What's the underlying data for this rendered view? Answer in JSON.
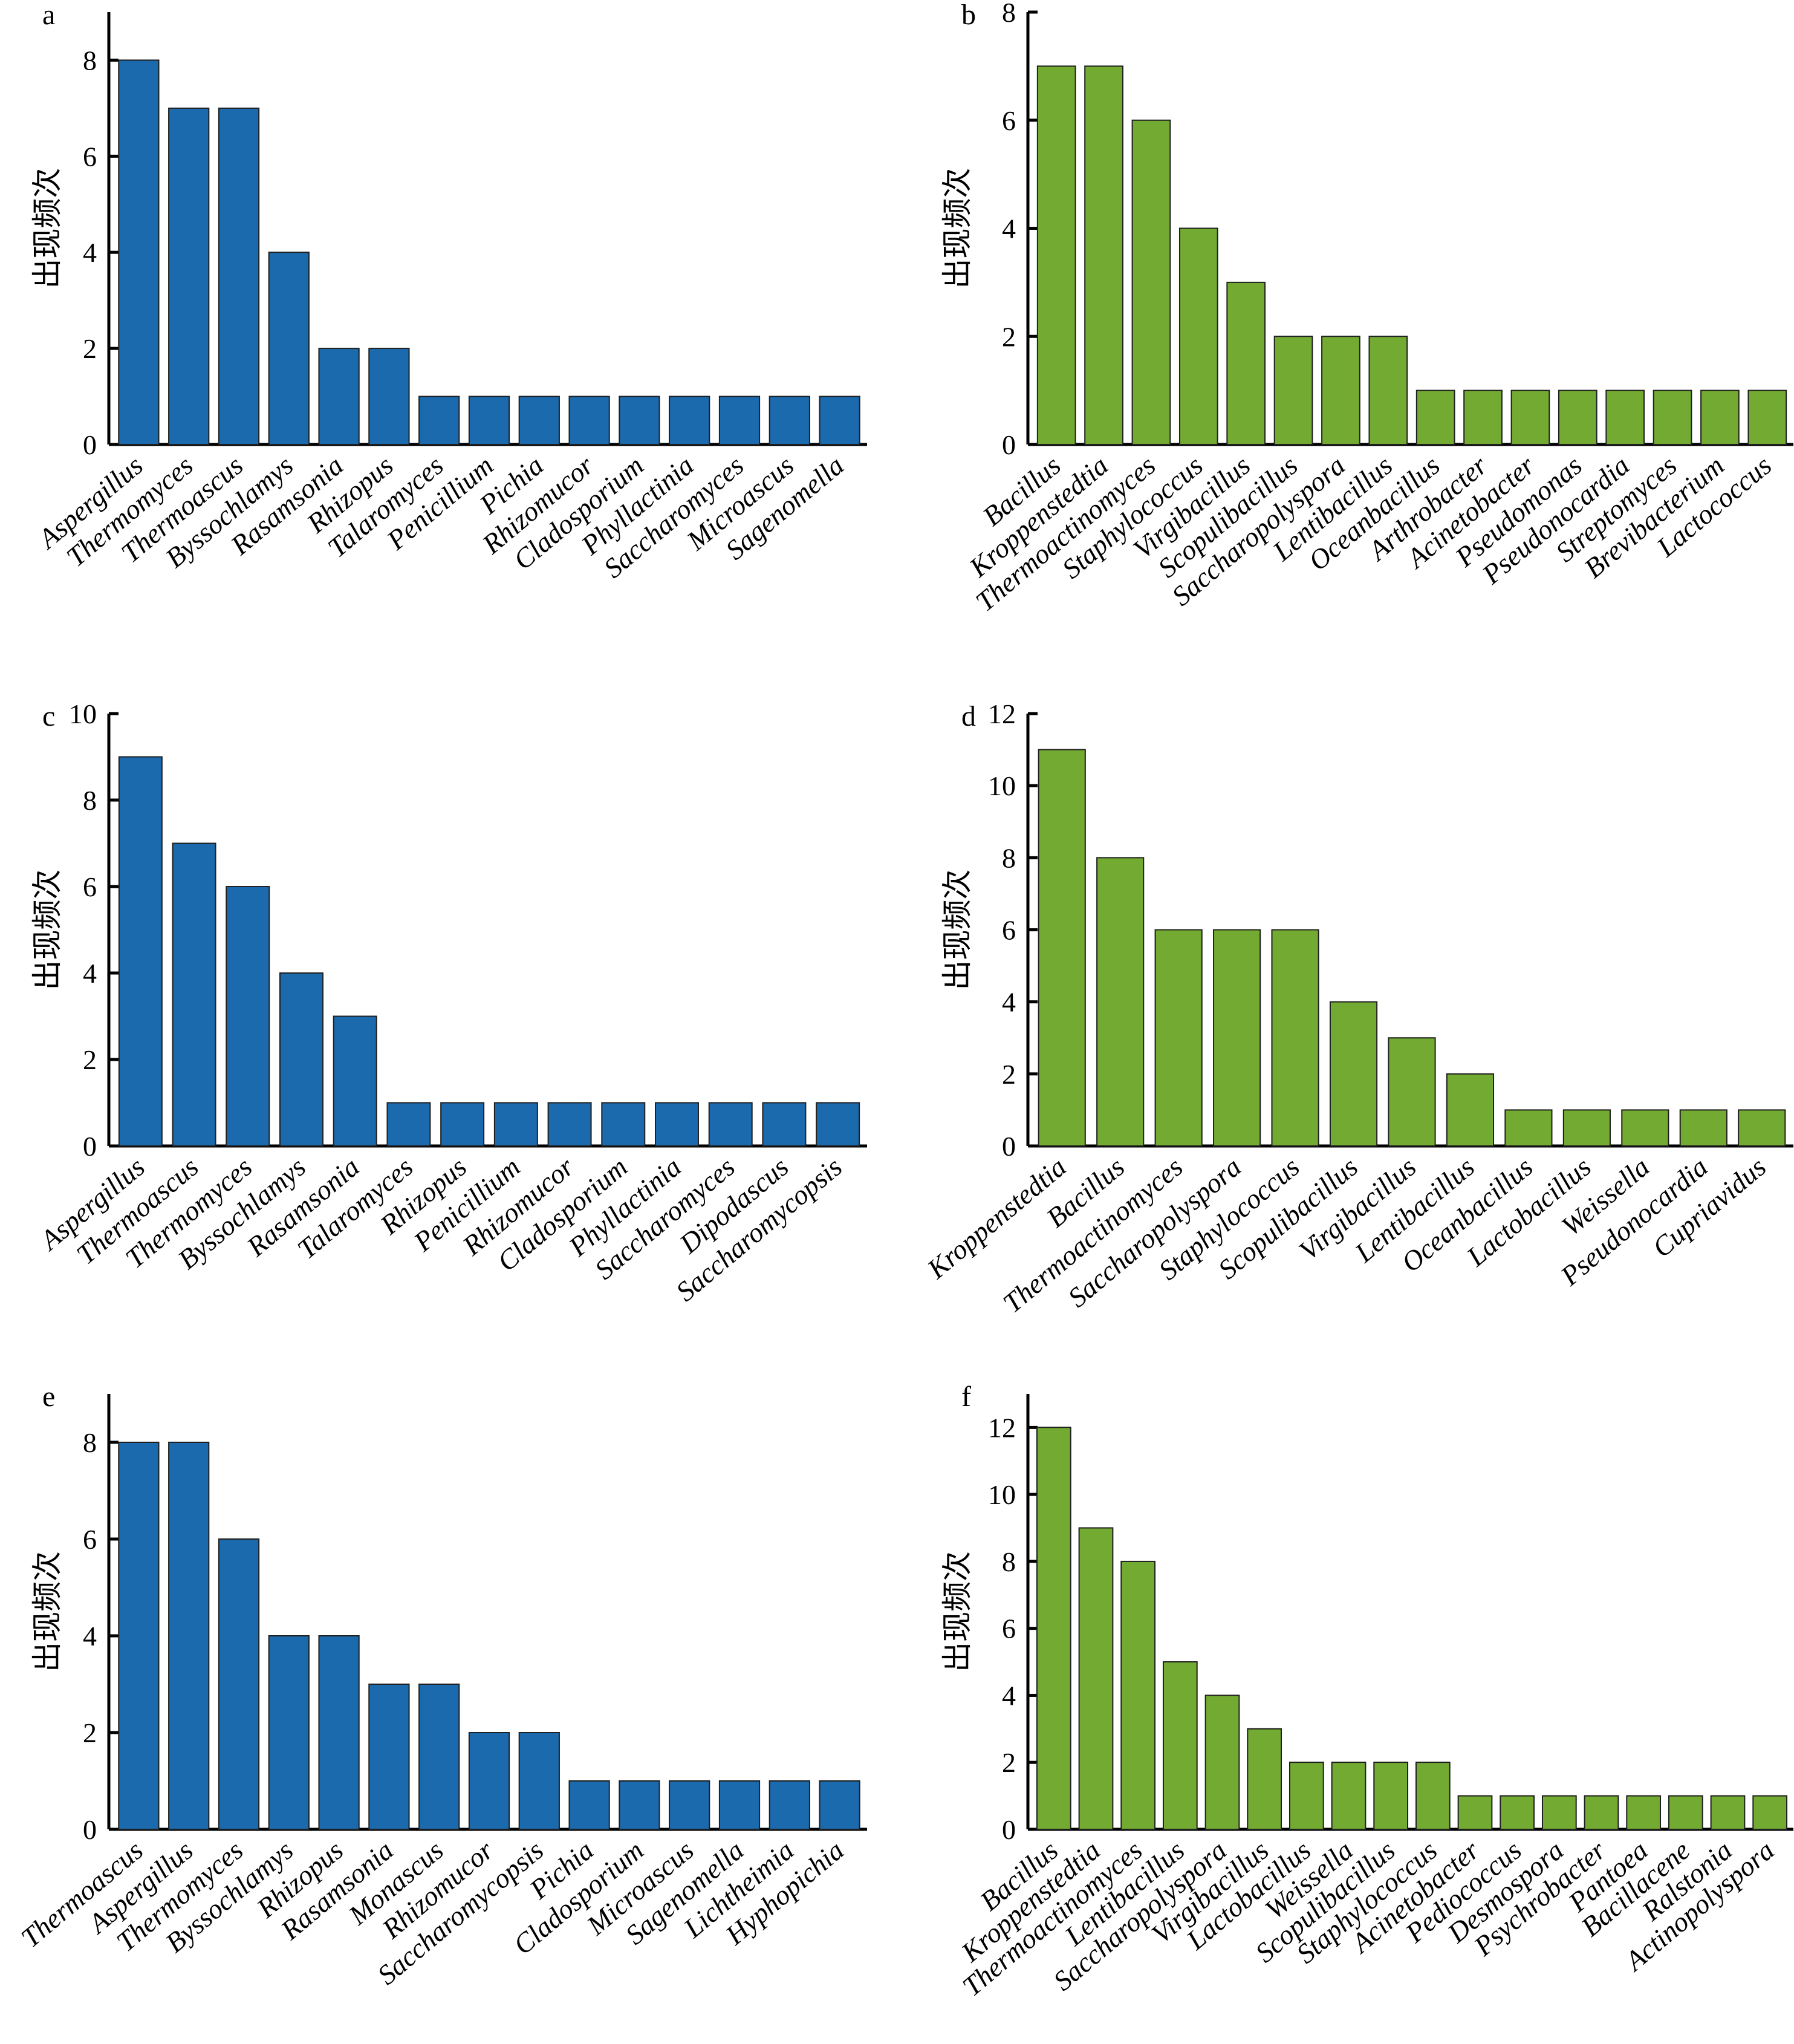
{
  "colors": {
    "fungi": "#1b6aad",
    "bacteria": "#73ab32"
  },
  "chart_data": [
    {
      "type": "bar",
      "panel": "a",
      "ylabel": "出现频次",
      "ylim": [
        0,
        9
      ],
      "yticks": [
        0,
        2,
        4,
        6,
        8
      ],
      "color": "#1b6aad",
      "categories": [
        "Aspergillus",
        "Thermomyces",
        "Thermoascus",
        "Byssochlamys",
        "Rasamsonia",
        "Rhizopus",
        "Talaromyces",
        "Penicillium",
        "Pichia",
        "Rhizomucor",
        "Cladosporium",
        "Phyllactinia",
        "Saccharomyces",
        "Microascus",
        "Sagenomella"
      ],
      "values": [
        8,
        7,
        7,
        4,
        2,
        2,
        1,
        1,
        1,
        1,
        1,
        1,
        1,
        1,
        1
      ]
    },
    {
      "type": "bar",
      "panel": "b",
      "ylabel": "出现频次",
      "ylim": [
        0,
        8
      ],
      "yticks": [
        0,
        2,
        4,
        6,
        8
      ],
      "color": "#73ab32",
      "categories": [
        "Bacillus",
        "Kroppenstedtia",
        "Thermoactinomyces",
        "Staphylococcus",
        "Virgibacillus",
        "Scopulibacillus",
        "Saccharopolyspora",
        "Lentibacillus",
        "Oceanbacillus",
        "Arthrobacter",
        "Acinetobacter",
        "Pseudomonas",
        "Pseudonocardia",
        "Streptomyces",
        "Brevibacterium",
        "Lactococcus"
      ],
      "values": [
        7,
        7,
        6,
        4,
        3,
        2,
        2,
        2,
        1,
        1,
        1,
        1,
        1,
        1,
        1,
        1
      ]
    },
    {
      "type": "bar",
      "panel": "c",
      "ylabel": "出现频次",
      "ylim": [
        0,
        10
      ],
      "yticks": [
        0,
        2,
        4,
        6,
        8,
        10
      ],
      "color": "#1b6aad",
      "categories": [
        "Aspergillus",
        "Thermoascus",
        "Thermomyces",
        "Byssochlamys",
        "Rasamsonia",
        "Talaromyces",
        "Rhizopus",
        "Penicillium",
        "Rhizomucor",
        "Cladosporium",
        "Phyllactinia",
        "Saccharomyces",
        "Dipodascus",
        "Saccharomycopsis"
      ],
      "values": [
        9,
        7,
        6,
        4,
        3,
        1,
        1,
        1,
        1,
        1,
        1,
        1,
        1,
        1
      ]
    },
    {
      "type": "bar",
      "panel": "d",
      "ylabel": "出现频次",
      "ylim": [
        0,
        12
      ],
      "yticks": [
        0,
        2,
        4,
        6,
        8,
        10,
        12
      ],
      "color": "#73ab32",
      "categories": [
        "Kroppenstedtia",
        "Bacillus",
        "Thermoactinomyces",
        "Saccharopolyspora",
        "Staphylococcus",
        "Scopulibacillus",
        "Virgibacillus",
        "Lentibacillus",
        "Oceanbacillus",
        "Lactobacillus",
        "Weissella",
        "Pseudonocardia",
        "Cupriavidus"
      ],
      "values": [
        11,
        8,
        6,
        6,
        6,
        4,
        3,
        2,
        1,
        1,
        1,
        1,
        1
      ]
    },
    {
      "type": "bar",
      "panel": "e",
      "ylabel": "出现频次",
      "ylim": [
        0,
        9
      ],
      "yticks": [
        0,
        2,
        4,
        6,
        8
      ],
      "color": "#1b6aad",
      "categories": [
        "Thermoascus",
        "Aspergillus",
        "Thermomyces",
        "Byssochlamys",
        "Rhizopus",
        "Rasamsonia",
        "Monascus",
        "Rhizomucor",
        "Saccharomycopsis",
        "Pichia",
        "Cladosporium",
        "Microascus",
        "Sagenomella",
        "Lichtheimia",
        "Hyphopichia"
      ],
      "values": [
        8,
        8,
        6,
        4,
        4,
        3,
        3,
        2,
        2,
        1,
        1,
        1,
        1,
        1,
        1
      ]
    },
    {
      "type": "bar",
      "panel": "f",
      "ylabel": "出现频次",
      "ylim": [
        0,
        13
      ],
      "yticks": [
        0,
        2,
        4,
        6,
        8,
        10,
        12
      ],
      "color": "#73ab32",
      "categories": [
        "Bacillus",
        "Kroppenstedtia",
        "Thermoactinomyces",
        "Lentibacillus",
        "Saccharopolyspora",
        "Virgibacillus",
        "Lactobacillus",
        "Weissella",
        "Scopulibacillus",
        "Staphylococcus",
        "Acinetobacter",
        "Pediococcus",
        "Desmospora",
        "Psychrobacter",
        "Pantoea",
        "Bacillacene",
        "Ralstonia",
        "Actinopolyspora"
      ],
      "values": [
        12,
        9,
        8,
        5,
        4,
        3,
        2,
        2,
        2,
        2,
        1,
        1,
        1,
        1,
        1,
        1,
        1,
        1
      ]
    }
  ]
}
